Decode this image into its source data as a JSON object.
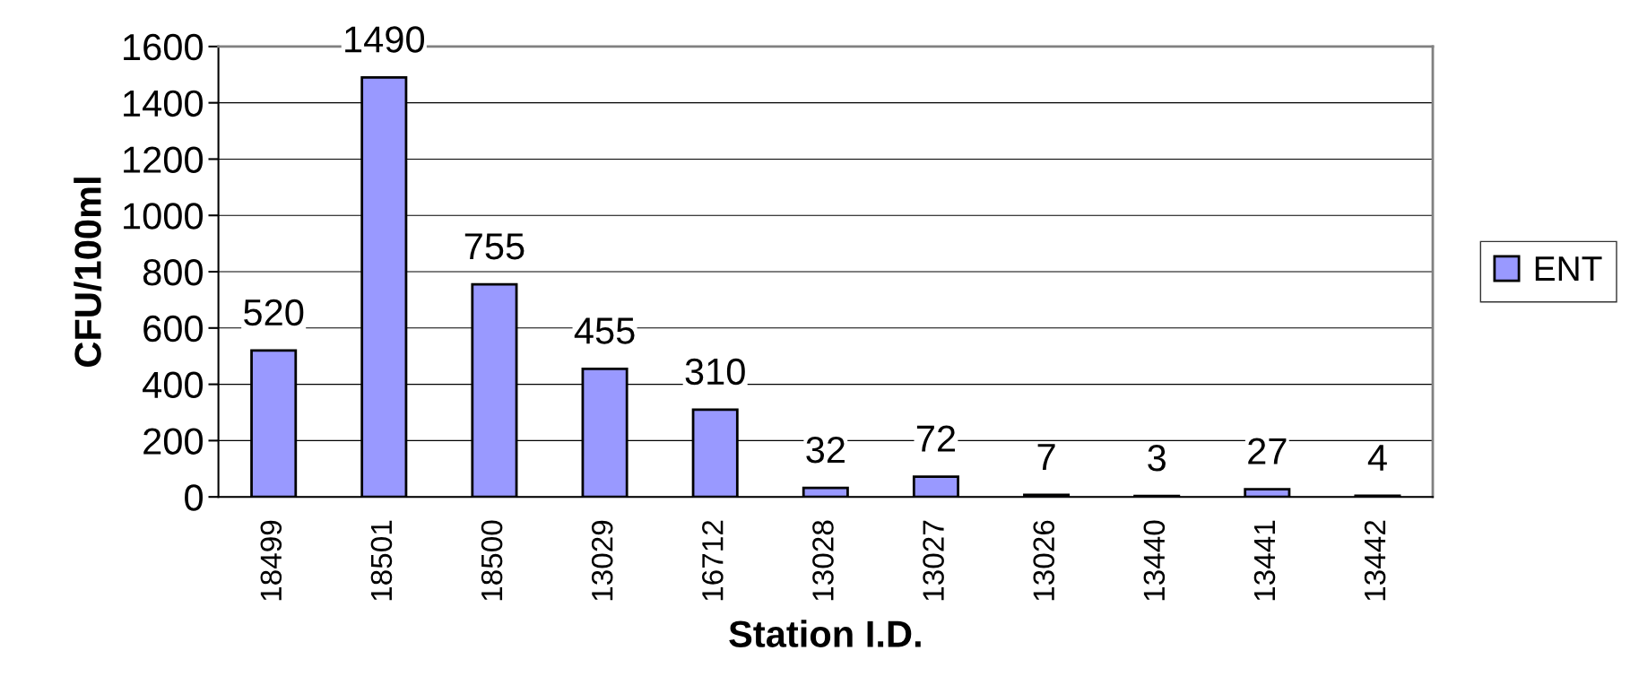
{
  "chart_data": {
    "type": "bar",
    "xlabel": "Station I.D.",
    "ylabel": "CFU/100ml",
    "categories": [
      "18499",
      "18501",
      "18500",
      "13029",
      "16712",
      "13028",
      "13027",
      "13026",
      "13440",
      "13441",
      "13442"
    ],
    "series": [
      {
        "name": "ENT",
        "color": "#9999ff",
        "values": [
          520,
          1490,
          755,
          455,
          310,
          32,
          72,
          7,
          3,
          27,
          4
        ]
      }
    ],
    "ylim": [
      0,
      1600
    ],
    "yticks": [
      0,
      200,
      400,
      600,
      800,
      1000,
      1200,
      1400,
      1600
    ],
    "grid": "y",
    "legend": "right",
    "data_labels": true
  }
}
